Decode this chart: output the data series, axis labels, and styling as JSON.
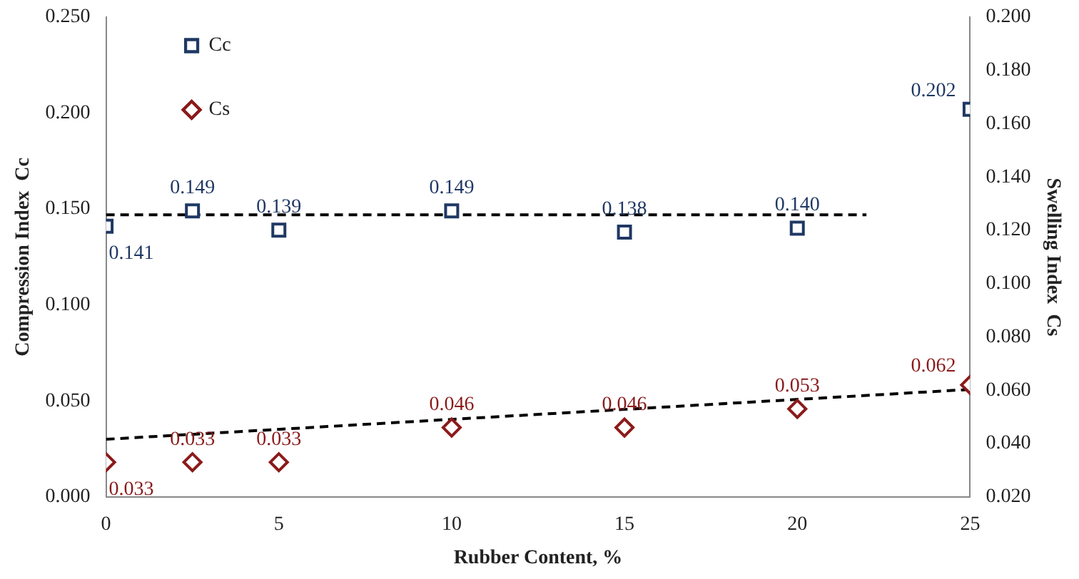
{
  "chart_data": {
    "type": "scatter",
    "xlabel": "Rubber Content, %",
    "ylabel": "Compression Index  Cc",
    "y2label": "Swelling Index  Cs",
    "xlim": [
      0,
      25
    ],
    "xticks": [
      0,
      5,
      10,
      15,
      20,
      25
    ],
    "ylim": [
      0,
      0.25
    ],
    "yticks": [
      {
        "value": 0,
        "label": "0.000"
      },
      {
        "value": 0.05,
        "label": "0.050"
      },
      {
        "value": 0.1,
        "label": "0.100"
      },
      {
        "value": 0.15,
        "label": "0.150"
      },
      {
        "value": 0.2,
        "label": "0.200"
      },
      {
        "value": 0.25,
        "label": "0.250"
      }
    ],
    "y2lim": [
      0.02,
      0.2
    ],
    "y2ticks": [
      {
        "value": 0.02,
        "label": "0.020"
      },
      {
        "value": 0.04,
        "label": "0.040"
      },
      {
        "value": 0.06,
        "label": "0.060"
      },
      {
        "value": 0.08,
        "label": "0.080"
      },
      {
        "value": 0.1,
        "label": "0.100"
      },
      {
        "value": 0.12,
        "label": "0.120"
      },
      {
        "value": 0.14,
        "label": "0.140"
      },
      {
        "value": 0.16,
        "label": "0.160"
      },
      {
        "value": 0.18,
        "label": "0.180"
      },
      {
        "value": 0.2,
        "label": "0.200"
      }
    ],
    "grid": false,
    "legend": "top left",
    "series": [
      {
        "name": "Cc",
        "marker": "square",
        "color": "#1f3864",
        "x": [
          0,
          2.5,
          5,
          10,
          15,
          20,
          25
        ],
        "values": [
          0.141,
          0.149,
          0.139,
          0.149,
          0.138,
          0.14,
          0.202
        ],
        "value_labels": [
          "0.141",
          "0.149",
          "0.139",
          "0.149",
          "0.138",
          "0.140",
          "0.202"
        ]
      },
      {
        "name": "Cs",
        "marker": "diamond",
        "axis": "y2",
        "color": "#8b1a1a",
        "x": [
          0,
          2.5,
          5,
          10,
          15,
          20,
          25
        ],
        "values": [
          0.033,
          0.033,
          0.033,
          0.046,
          0.046,
          0.053,
          0.062
        ],
        "value_labels": [
          "0.033",
          "0.033",
          "0.033",
          "0.046",
          "0.046",
          "0.053",
          "0.062"
        ]
      },
      {
        "type": "line",
        "marker": "none",
        "line_style": "dashed",
        "color": "#000000",
        "x": [
          0,
          22
        ],
        "values": [
          0.147,
          0.147
        ]
      },
      {
        "type": "line",
        "marker": "none",
        "line_style": "dashed",
        "axis": "y2",
        "color": "#000000",
        "x": [
          0,
          25
        ],
        "values": [
          0.0416,
          0.0603
        ]
      }
    ]
  }
}
